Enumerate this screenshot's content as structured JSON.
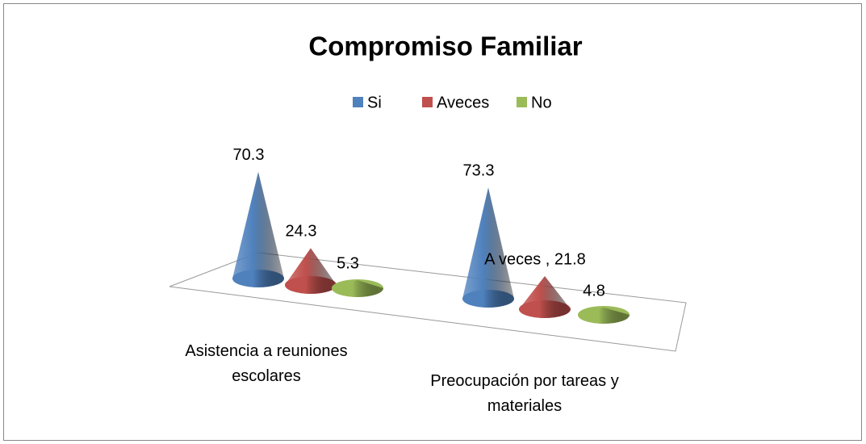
{
  "chart_data": {
    "type": "cone",
    "title": "Compromiso  Familiar",
    "categories": [
      "Asistencia a reuniones escolares",
      "Preocupación por tareas y materiales"
    ],
    "series": [
      {
        "name": "Si",
        "color": "#4f81bd",
        "values": [
          70.3,
          73.3
        ]
      },
      {
        "name": "Aveces",
        "color": "#c0504d",
        "values": [
          24.3,
          21.8
        ],
        "value_labels": [
          "24.3",
          "A  veces , 21.8"
        ]
      },
      {
        "name": "No",
        "color": "#9bbb59",
        "values": [
          5.3,
          4.8
        ]
      }
    ],
    "legend": "top"
  }
}
